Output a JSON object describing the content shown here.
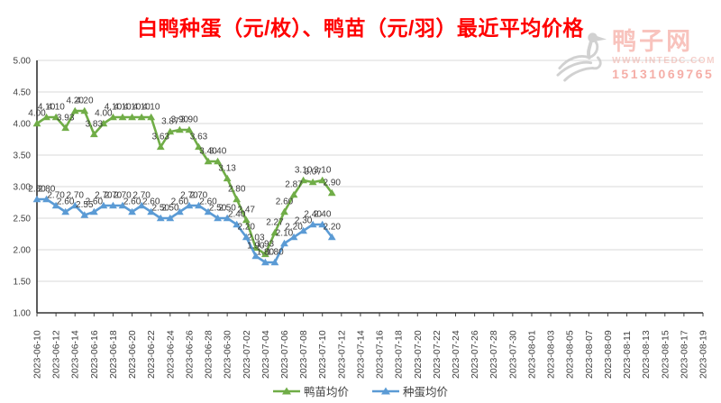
{
  "title": "白鸭种蛋（元/枚）、鸭苗（元/羽）最近平均价格",
  "title_color": "#FF0000",
  "watermark": {
    "site_name": "鸭子网",
    "site_url": "WWW.INTEDC.COM",
    "phone": "15131069765"
  },
  "chart_data": {
    "type": "line",
    "title": "白鸭种蛋（元/枚）、鸭苗（元/羽）最近平均价格",
    "xlabel": "",
    "ylabel": "",
    "ylim": [
      1.0,
      5.0
    ],
    "y_tick_step": 0.5,
    "y_tick_labels": [
      "5.00",
      "4.50",
      "4.00",
      "3.50",
      "3.00",
      "2.50",
      "2.00",
      "1.50",
      "1.00"
    ],
    "grid": true,
    "legend_position": "bottom",
    "data_labels": true,
    "x_points_per_tick": 2,
    "x_tick_labels": [
      "2023-06-10",
      "2023-06-12",
      "2023-06-14",
      "2023-06-16",
      "2023-06-18",
      "2023-06-20",
      "2023-06-22",
      "2023-06-24",
      "2023-06-26",
      "2023-06-28",
      "2023-06-30",
      "2023-07-02",
      "2023-07-04",
      "2023-07-06",
      "2023-07-08",
      "2023-07-10",
      "2023-07-12",
      "2023-07-14",
      "2023-07-16",
      "2023-07-18",
      "2023-07-20",
      "2023-07-22",
      "2023-07-24",
      "2023-07-26",
      "2023-07-28",
      "2023-07-30",
      "2023-08-01",
      "2023-08-03",
      "2023-08-05",
      "2023-08-07",
      "2023-08-09",
      "2023-08-11",
      "2023-08-13",
      "2023-08-15",
      "2023-08-17",
      "2023-08-19"
    ],
    "series": [
      {
        "name": "鸭苗均价",
        "color": "#70AD47",
        "marker": "triangle",
        "values": [
          4.0,
          4.1,
          4.1,
          3.93,
          4.2,
          4.2,
          3.83,
          4.0,
          4.1,
          4.1,
          4.1,
          4.1,
          4.1,
          3.63,
          3.87,
          3.9,
          3.9,
          3.63,
          3.4,
          3.4,
          3.13,
          2.8,
          2.47,
          2.03,
          1.93,
          2.27,
          2.6,
          2.87,
          3.1,
          3.07,
          3.1,
          2.9
        ]
      },
      {
        "name": "种蛋均价",
        "color": "#5B9BD5",
        "marker": "triangle",
        "values": [
          2.8,
          2.8,
          2.7,
          2.6,
          2.7,
          2.55,
          2.6,
          2.7,
          2.7,
          2.7,
          2.6,
          2.7,
          2.6,
          2.5,
          2.5,
          2.6,
          2.7,
          2.7,
          2.6,
          2.5,
          2.5,
          2.4,
          2.2,
          1.9,
          1.8,
          1.8,
          2.1,
          2.2,
          2.3,
          2.4,
          2.4,
          2.2
        ]
      }
    ]
  }
}
